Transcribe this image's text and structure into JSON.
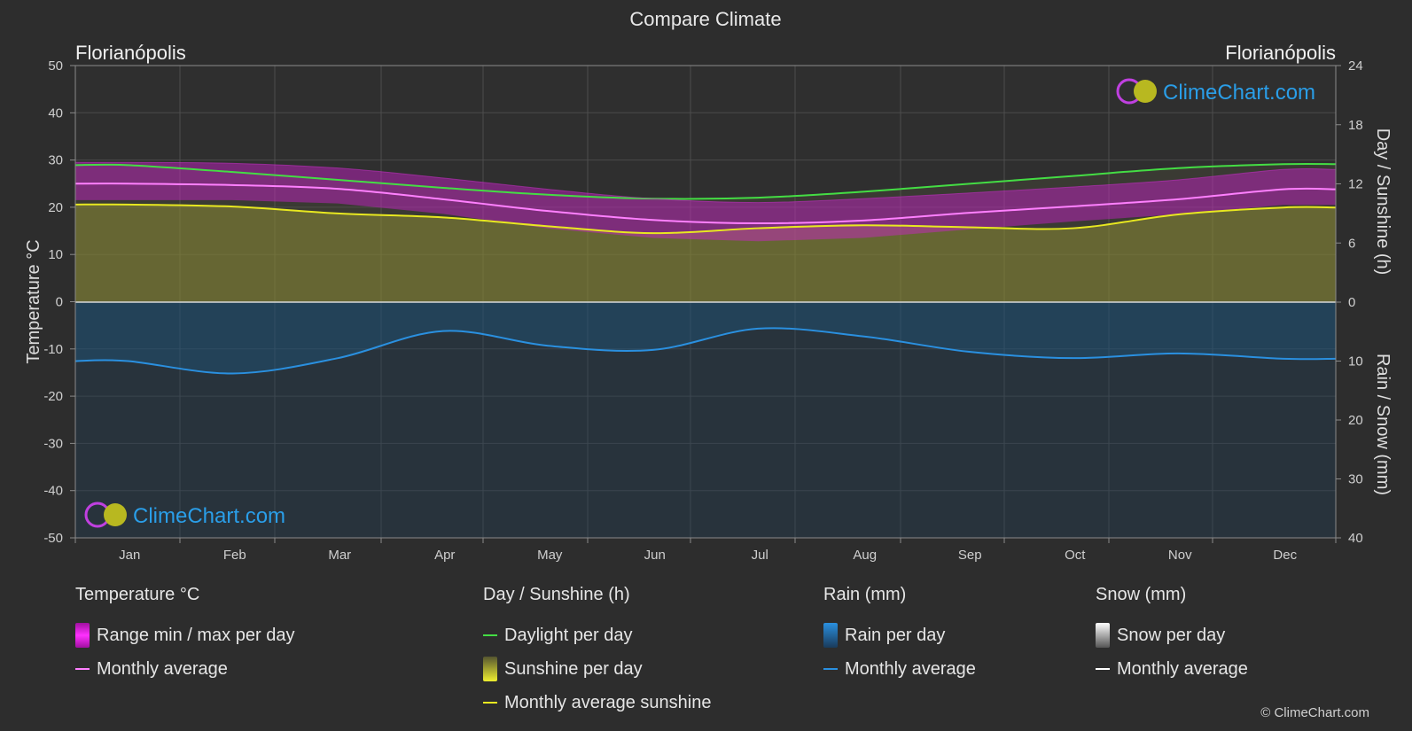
{
  "title": "Compare Climate",
  "location_left": "Florianópolis",
  "location_right": "Florianópolis",
  "watermark": "ClimeChart.com",
  "copyright": "© ClimeChart.com",
  "colors": {
    "background": "#2d2d2d",
    "temp_range": "#d020d0",
    "temp_avg": "#ff80ff",
    "daylight": "#44dd44",
    "sunshine_fill": "#9a9a30",
    "sunshine_avg": "#e8e820",
    "rain_fill": "#1a6fa8",
    "rain_avg": "#2a90e0",
    "snow_avg": "#ffffff",
    "logo_blue": "#2a9ee8"
  },
  "legend": {
    "temperature": {
      "heading": "Temperature °C",
      "range": "Range min / max per day",
      "avg": "Monthly average"
    },
    "sun": {
      "heading": "Day / Sunshine (h)",
      "daylight": "Daylight per day",
      "sunshine": "Sunshine per day",
      "avg": "Monthly average sunshine"
    },
    "rain": {
      "heading": "Rain (mm)",
      "per_day": "Rain per day",
      "avg": "Monthly average"
    },
    "snow": {
      "heading": "Snow (mm)",
      "per_day": "Snow per day",
      "avg": "Monthly average"
    }
  },
  "chart_data": {
    "type": "area",
    "x": [
      "Jan",
      "Feb",
      "Mar",
      "Apr",
      "May",
      "Jun",
      "Jul",
      "Aug",
      "Sep",
      "Oct",
      "Nov",
      "Dec"
    ],
    "y_left": {
      "label": "Temperature °C",
      "range": [
        -50,
        50
      ],
      "ticks": [
        50,
        40,
        30,
        20,
        10,
        0,
        -10,
        -20,
        -30,
        -40,
        -50
      ]
    },
    "y_right_top": {
      "label": "Day / Sunshine (h)",
      "range": [
        0,
        24
      ],
      "ticks": [
        24,
        18,
        12,
        6,
        0
      ]
    },
    "y_right_bottom": {
      "label": "Rain / Snow (mm)",
      "range": [
        0,
        40
      ],
      "ticks": [
        10,
        20,
        30,
        40
      ]
    },
    "grid": true,
    "series": [
      {
        "name": "Monthly average",
        "group": "temperature",
        "unit": "°C",
        "values": [
          25.0,
          24.7,
          23.9,
          21.7,
          19.2,
          17.3,
          16.6,
          17.2,
          18.8,
          20.2,
          21.7,
          23.8
        ]
      },
      {
        "name": "Range min / max per day",
        "group": "temperature",
        "unit": "°C",
        "min": [
          21.5,
          21.5,
          20.8,
          18.6,
          15.5,
          13.5,
          12.8,
          13.5,
          15.3,
          17.0,
          18.5,
          20.5
        ],
        "max": [
          29.5,
          29.3,
          28.3,
          26.2,
          23.8,
          21.8,
          21.0,
          21.8,
          23.0,
          24.3,
          25.8,
          28.0
        ]
      },
      {
        "name": "Daylight per day",
        "group": "sun",
        "unit": "h",
        "values": [
          13.9,
          13.2,
          12.4,
          11.6,
          10.9,
          10.5,
          10.6,
          11.2,
          12.0,
          12.8,
          13.6,
          14.0
        ]
      },
      {
        "name": "Monthly average sunshine",
        "group": "sun",
        "unit": "h",
        "values": [
          9.9,
          9.7,
          9.0,
          8.6,
          7.7,
          7.0,
          7.5,
          7.8,
          7.6,
          7.5,
          8.9,
          9.6
        ]
      },
      {
        "name": "Monthly average",
        "group": "rain",
        "unit": "mm",
        "values": [
          10.0,
          12.1,
          9.5,
          4.9,
          7.4,
          8.1,
          4.5,
          5.8,
          8.4,
          9.5,
          8.7,
          9.6
        ]
      },
      {
        "name": "Monthly average",
        "group": "snow",
        "unit": "mm",
        "values": [
          0,
          0,
          0,
          0,
          0,
          0,
          0,
          0,
          0,
          0,
          0,
          0
        ]
      }
    ]
  }
}
